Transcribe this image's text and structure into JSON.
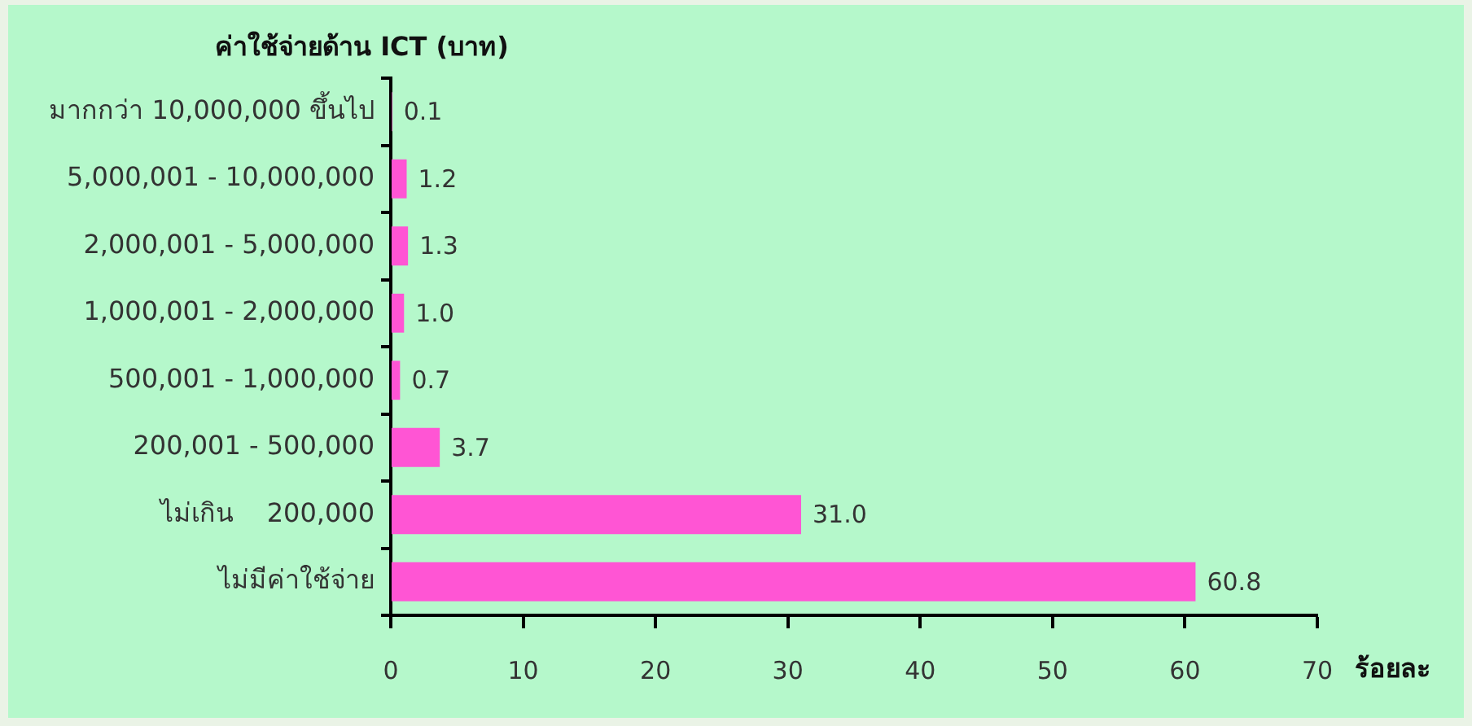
{
  "chart_data": {
    "type": "bar",
    "orientation": "horizontal",
    "ylabel": "ค่าใช้จ่ายด้าน ICT (บาท)",
    "xlabel": "ร้อยละ",
    "categories": [
      "มากกว่า 10,000,000 ขึ้นไป",
      "5,000,001 - 10,000,000",
      "2,000,001 - 5,000,000",
      "1,000,001 - 2,000,000",
      "500,001 - 1,000,000",
      "200,001 - 500,000",
      "ไม่เกิน    200,000",
      "ไม่มีค่าใช้จ่าย"
    ],
    "values": [
      0.1,
      1.2,
      1.3,
      1.0,
      0.7,
      3.7,
      31.0,
      60.8
    ],
    "value_labels": [
      "0.1",
      "1.2",
      "1.3",
      "1.0",
      "0.7",
      "3.7",
      "31.0",
      "60.8"
    ],
    "color": "#ff55d4",
    "xlim": [
      0,
      70
    ],
    "xticks": [
      0,
      10,
      20,
      30,
      40,
      50,
      60,
      70
    ],
    "grid": false,
    "legend": false
  }
}
